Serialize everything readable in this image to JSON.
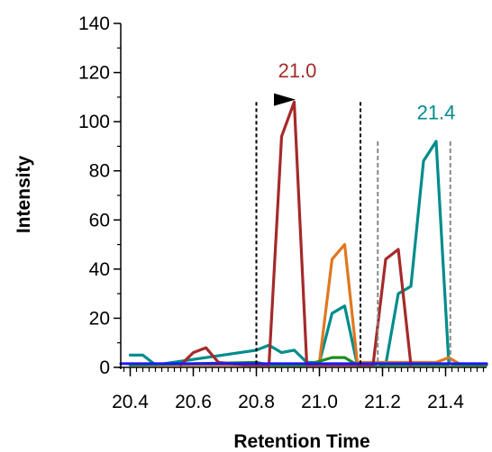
{
  "chart_data": {
    "type": "line",
    "xlabel": "Retention Time",
    "ylabel": "Intensity",
    "xlim": [
      20.37,
      21.53
    ],
    "ylim": [
      0,
      140
    ],
    "xticks": [
      20.4,
      20.6,
      20.8,
      21.0,
      21.2,
      21.4
    ],
    "xtick_labels": [
      "20.4",
      "20.6",
      "20.8",
      "21.0",
      "21.2",
      "21.4"
    ],
    "yticks": [
      0,
      20,
      40,
      60,
      80,
      100,
      120,
      140
    ],
    "ytick_labels": [
      "0",
      "20",
      "40",
      "60",
      "80",
      "100",
      "120",
      "140"
    ],
    "grid": false,
    "series": [
      {
        "color": "#008c8c",
        "x": [
          20.4,
          20.44,
          20.48,
          20.8,
          20.84,
          20.88,
          20.92,
          20.96,
          21.0,
          21.04,
          21.08,
          21.12,
          21.17,
          21.21,
          21.25,
          21.29,
          21.33,
          21.37,
          21.41
        ],
        "y": [
          5,
          5,
          1,
          7,
          9,
          6,
          7,
          2,
          2,
          22,
          25,
          1,
          1,
          1,
          30,
          33,
          84,
          92,
          2
        ]
      },
      {
        "color": "#e07820",
        "x": [
          20.4,
          20.96,
          21.0,
          21.04,
          21.08,
          21.12,
          21.37,
          21.41,
          21.45,
          21.53
        ],
        "y": [
          1,
          1,
          2,
          44,
          50,
          2,
          2,
          4,
          1,
          1
        ]
      },
      {
        "color": "#1e8c1e",
        "x": [
          20.4,
          20.8,
          20.84,
          20.96,
          21.04,
          21.08,
          21.12,
          21.53
        ],
        "y": [
          1,
          2,
          1,
          1,
          4,
          4,
          1,
          1
        ]
      },
      {
        "color": "#a52a2a",
        "x": [
          20.56,
          20.6,
          20.64,
          20.68,
          20.76,
          20.84,
          20.88,
          20.92,
          20.96,
          21.17,
          21.21,
          21.25,
          21.29
        ],
        "y": [
          1,
          6,
          8,
          2,
          1,
          1,
          94,
          108,
          1,
          1,
          44,
          48,
          1
        ]
      },
      {
        "color": "#1a1aff",
        "x": [
          20.37,
          21.53
        ],
        "y": [
          1.5,
          1.5
        ]
      }
    ],
    "boundary_lines": [
      {
        "x": 20.8,
        "color": "#000000",
        "style": "dash"
      },
      {
        "x": 21.13,
        "color": "#000000",
        "style": "dash"
      },
      {
        "x": 21.185,
        "color": "#888888",
        "style": "dash",
        "top": 92
      },
      {
        "x": 21.415,
        "color": "#888888",
        "style": "dash",
        "top": 92
      }
    ],
    "annotations": [
      {
        "text": "21.0",
        "x": 20.93,
        "y": 118,
        "color": "#a52a2a"
      },
      {
        "text": "21.4",
        "x": 21.37,
        "y": 101,
        "color": "#008c8c"
      }
    ],
    "marker": {
      "type": "triangle-right",
      "x": 20.89,
      "y": 109,
      "color": "#000000"
    }
  }
}
